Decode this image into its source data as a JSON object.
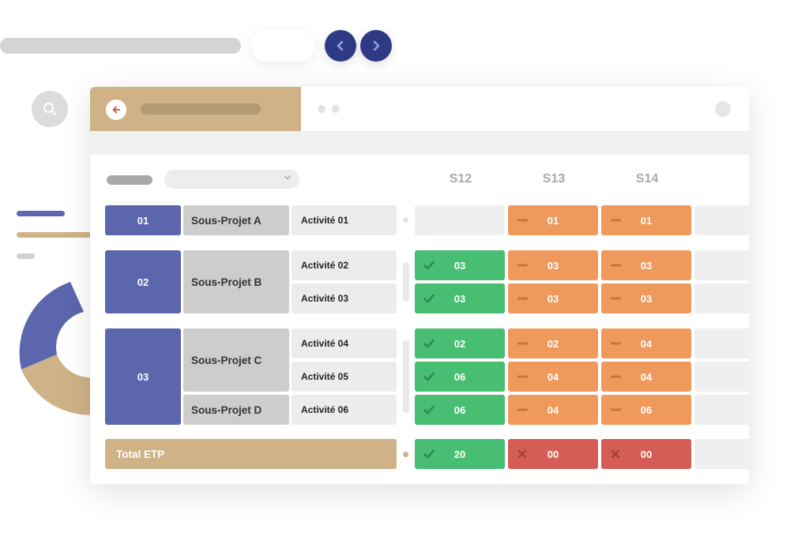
{
  "colors": {
    "navy": "#2f3a86",
    "project": "#5c66ad",
    "gold": "#cfb287",
    "green": "#47be72",
    "orange": "#ef9a5c",
    "red": "#d65d55",
    "grey": "#cdcdcd"
  },
  "icons": {
    "prev": "chevron-left-icon",
    "next": "chevron-right-icon",
    "search": "search-icon",
    "back": "arrow-left-icon",
    "check": "check-icon",
    "minus": "minus-icon",
    "cross": "cross-icon"
  },
  "weeks": [
    "S12",
    "S13",
    "S14"
  ],
  "projects": [
    {
      "id": "01",
      "sub_projects": [
        "Sous-Projet A"
      ],
      "activities": [
        "Activité 01"
      ]
    },
    {
      "id": "02",
      "sub_projects": [
        "Sous-Projet B"
      ],
      "activities": [
        "Activité 02",
        "Activité 03"
      ]
    },
    {
      "id": "03",
      "sub_projects": [
        "Sous-Projet C",
        "Sous-Projet D"
      ],
      "activities": [
        "Activité 04",
        "Activité 05",
        "Activité 06"
      ]
    }
  ],
  "grid": {
    "row_01": [
      {
        "status": "empty",
        "value": ""
      },
      {
        "status": "warning",
        "value": "01"
      },
      {
        "status": "warning",
        "value": "01"
      }
    ],
    "row_02": [
      {
        "status": "ok",
        "value": "03"
      },
      {
        "status": "warning",
        "value": "03"
      },
      {
        "status": "warning",
        "value": "03"
      }
    ],
    "row_03": [
      {
        "status": "ok",
        "value": "03"
      },
      {
        "status": "warning",
        "value": "03"
      },
      {
        "status": "warning",
        "value": "03"
      }
    ],
    "row_04": [
      {
        "status": "ok",
        "value": "02"
      },
      {
        "status": "warning",
        "value": "02"
      },
      {
        "status": "warning",
        "value": "04"
      }
    ],
    "row_05": [
      {
        "status": "ok",
        "value": "06"
      },
      {
        "status": "warning",
        "value": "04"
      },
      {
        "status": "warning",
        "value": "04"
      }
    ],
    "row_06": [
      {
        "status": "ok",
        "value": "06"
      },
      {
        "status": "warning",
        "value": "04"
      },
      {
        "status": "warning",
        "value": "06"
      }
    ]
  },
  "total": {
    "label": "Total ETP",
    "values": [
      {
        "status": "ok",
        "value": "20"
      },
      {
        "status": "error",
        "value": "00"
      },
      {
        "status": "error",
        "value": "00"
      }
    ]
  }
}
